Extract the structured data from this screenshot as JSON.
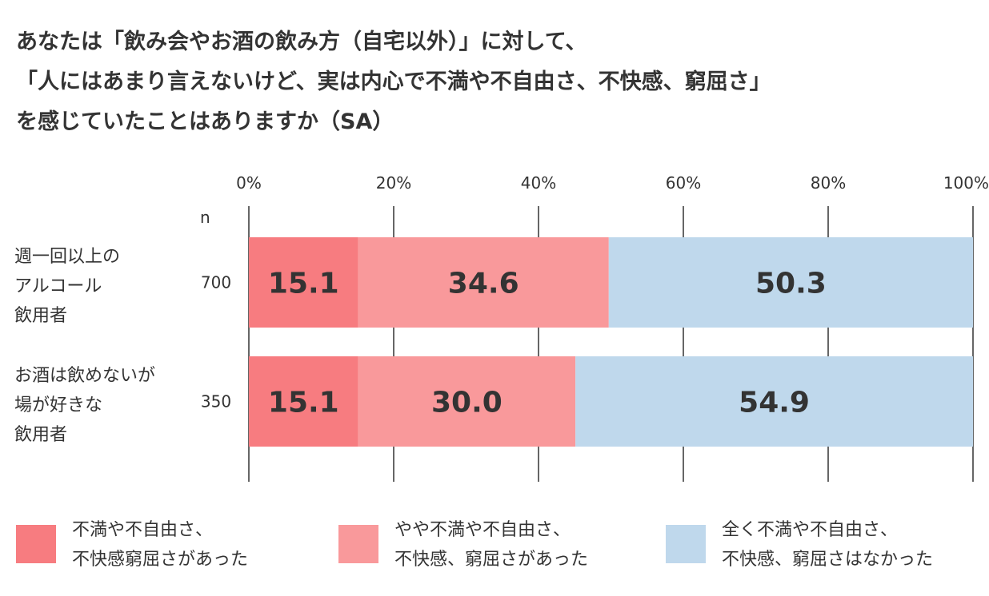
{
  "title": {
    "line1": "あなたは「飲み会やお酒の飲み方（自宅以外）」に対して、",
    "line2": "「人にはあまり言えないけど、実は内心で不満や不自由さ、不快感、窮屈さ」",
    "line3": "を感じていたことはありますか（SA）"
  },
  "chart_data": {
    "type": "bar",
    "orientation": "horizontal",
    "stacked": true,
    "x_ticks": [
      "0%",
      "20%",
      "40%",
      "60%",
      "80%",
      "100%"
    ],
    "xlim": [
      0,
      100
    ],
    "n_header": "n",
    "categories": [
      "週一回以上の\nアルコール\n飲用者",
      "お酒は飲めないが\n場が好きな\n飲用者"
    ],
    "n_values": [
      "700",
      "350"
    ],
    "series": [
      {
        "name": "不満や不自由さ、\n不快感窮屈さがあった",
        "color": "#f77c80",
        "values": [
          15.1,
          15.1
        ]
      },
      {
        "name": "やや不満や不自由さ、\n不快感、窮屈さがあった",
        "color": "#f9999b",
        "values": [
          34.6,
          30.0
        ]
      },
      {
        "name": "全く不満や不自由さ、\n不快感、窮屈さはなかった",
        "color": "#bfd8ec",
        "values": [
          50.3,
          54.9
        ]
      }
    ],
    "value_labels": [
      [
        "15.1",
        "34.6",
        "50.3"
      ],
      [
        "15.1",
        "30.0",
        "54.9"
      ]
    ],
    "grid": true,
    "legend_position": "bottom"
  }
}
